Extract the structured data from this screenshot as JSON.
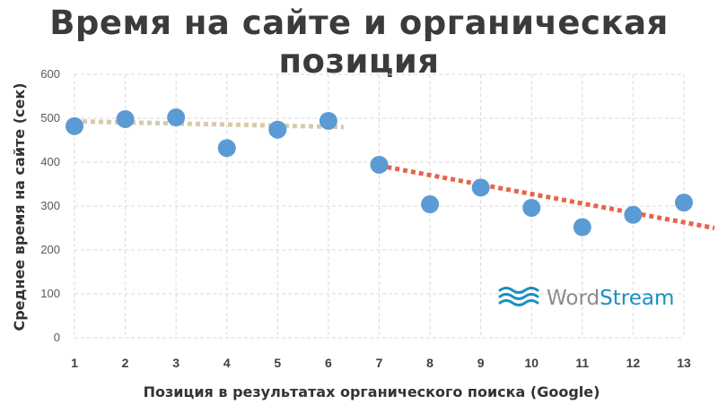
{
  "chart_data": {
    "type": "scatter",
    "title": "Время на сайте и органическая позиция",
    "xlabel": "Позиция в результатах органического поиска (Google)",
    "ylabel": "Среднее время на сайте (сек)",
    "x_ticks": [
      "1",
      "2",
      "3",
      "4",
      "5",
      "6",
      "7",
      "8",
      "9",
      "10",
      "11",
      "12",
      "13"
    ],
    "y_ticks": [
      "0",
      "100",
      "200",
      "300",
      "400",
      "500",
      "600"
    ],
    "xlim": [
      1,
      13
    ],
    "ylim": [
      0,
      600
    ],
    "grid": "dashed",
    "series": [
      {
        "x": [
          1,
          2,
          3,
          4,
          5,
          6,
          7,
          8,
          9,
          10,
          11,
          12,
          13
        ],
        "y": [
          482,
          498,
          502,
          432,
          474,
          494,
          394,
          304,
          342,
          296,
          252,
          280,
          308
        ],
        "color": "#5b9bd5"
      }
    ],
    "trendlines": [
      {
        "x": [
          1,
          6.3
        ],
        "y": [
          493,
          480
        ],
        "color": "#d4cba9",
        "style": "dotted"
      },
      {
        "x": [
          7,
          13.6
        ],
        "y": [
          392,
          250
        ],
        "color": "#e8634a",
        "style": "dotted"
      }
    ]
  },
  "watermark": {
    "brand_part1": "Word",
    "brand_part2": "Stream",
    "color_part1": "#8c8c8c",
    "color_part2": "#1b8fc1"
  }
}
